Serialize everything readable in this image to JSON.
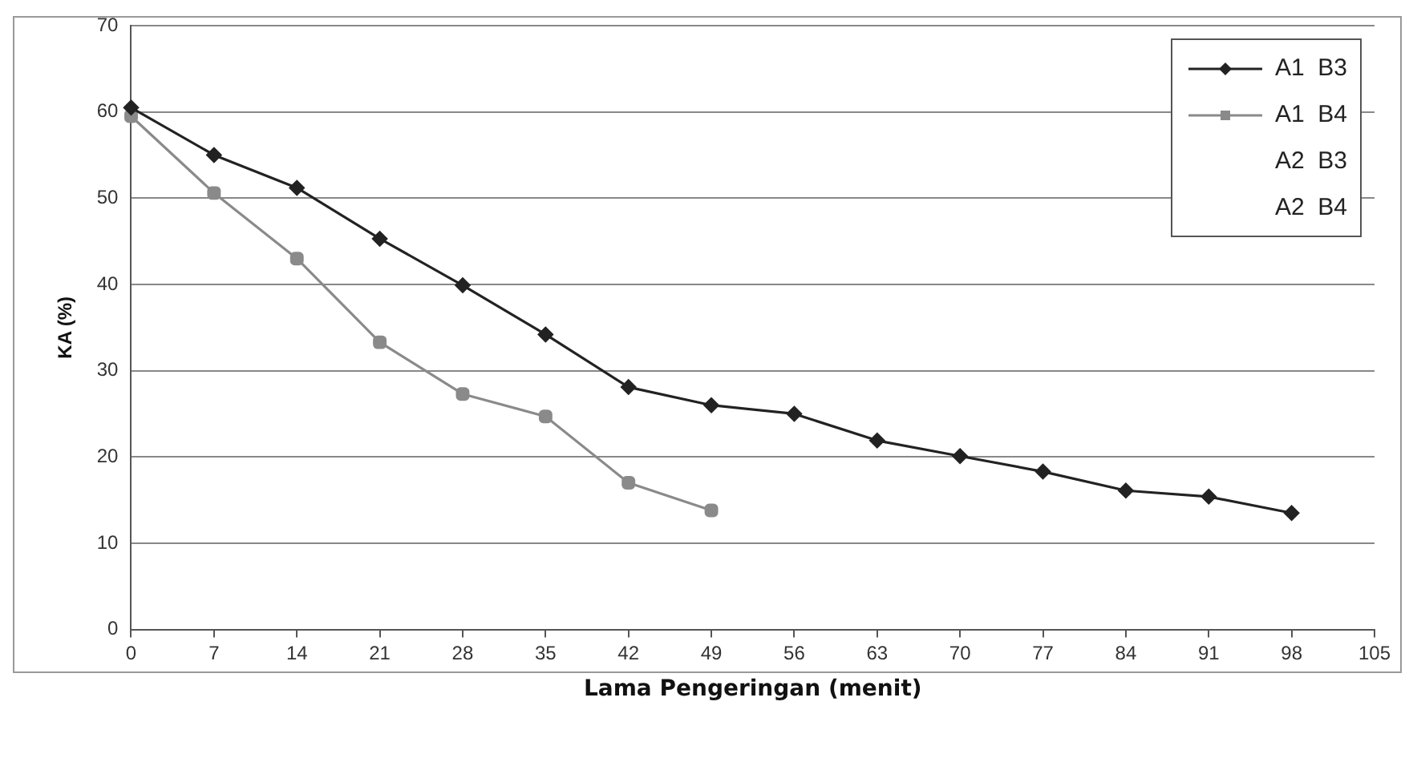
{
  "chart_data": {
    "type": "line",
    "xlabel": "Lama Pengeringan (menit)",
    "ylabel": "KA (%)",
    "xlim": [
      0,
      105
    ],
    "xticks": [
      0,
      7,
      14,
      21,
      28,
      35,
      42,
      49,
      56,
      63,
      70,
      77,
      84,
      91,
      98,
      105
    ],
    "ylim": [
      0,
      70
    ],
    "yticks": [
      0,
      10,
      20,
      30,
      40,
      50,
      60,
      70
    ],
    "grid": "y",
    "legend": "top right",
    "series": [
      {
        "name": "A1  B3",
        "color": "#222222",
        "marker": "diamond",
        "x": [
          0,
          7,
          14,
          21,
          28,
          35,
          42,
          49,
          56,
          63,
          70,
          77,
          84,
          91,
          98
        ],
        "values": [
          60.5,
          55,
          51.2,
          45.3,
          39.9,
          34.2,
          28.1,
          26,
          25,
          21.9,
          20.1,
          18.3,
          16.1,
          15.4,
          13.5
        ]
      },
      {
        "name": "A1  B4",
        "color": "#8a8a8a",
        "marker": "square",
        "x": [
          0,
          7,
          14,
          21,
          28,
          35,
          42,
          49
        ],
        "values": [
          59.5,
          50.6,
          43,
          33.3,
          27.3,
          24.7,
          17,
          13.8
        ]
      },
      {
        "name": "A2  B3",
        "color": null
      },
      {
        "name": "A2  B4",
        "color": null
      }
    ]
  }
}
